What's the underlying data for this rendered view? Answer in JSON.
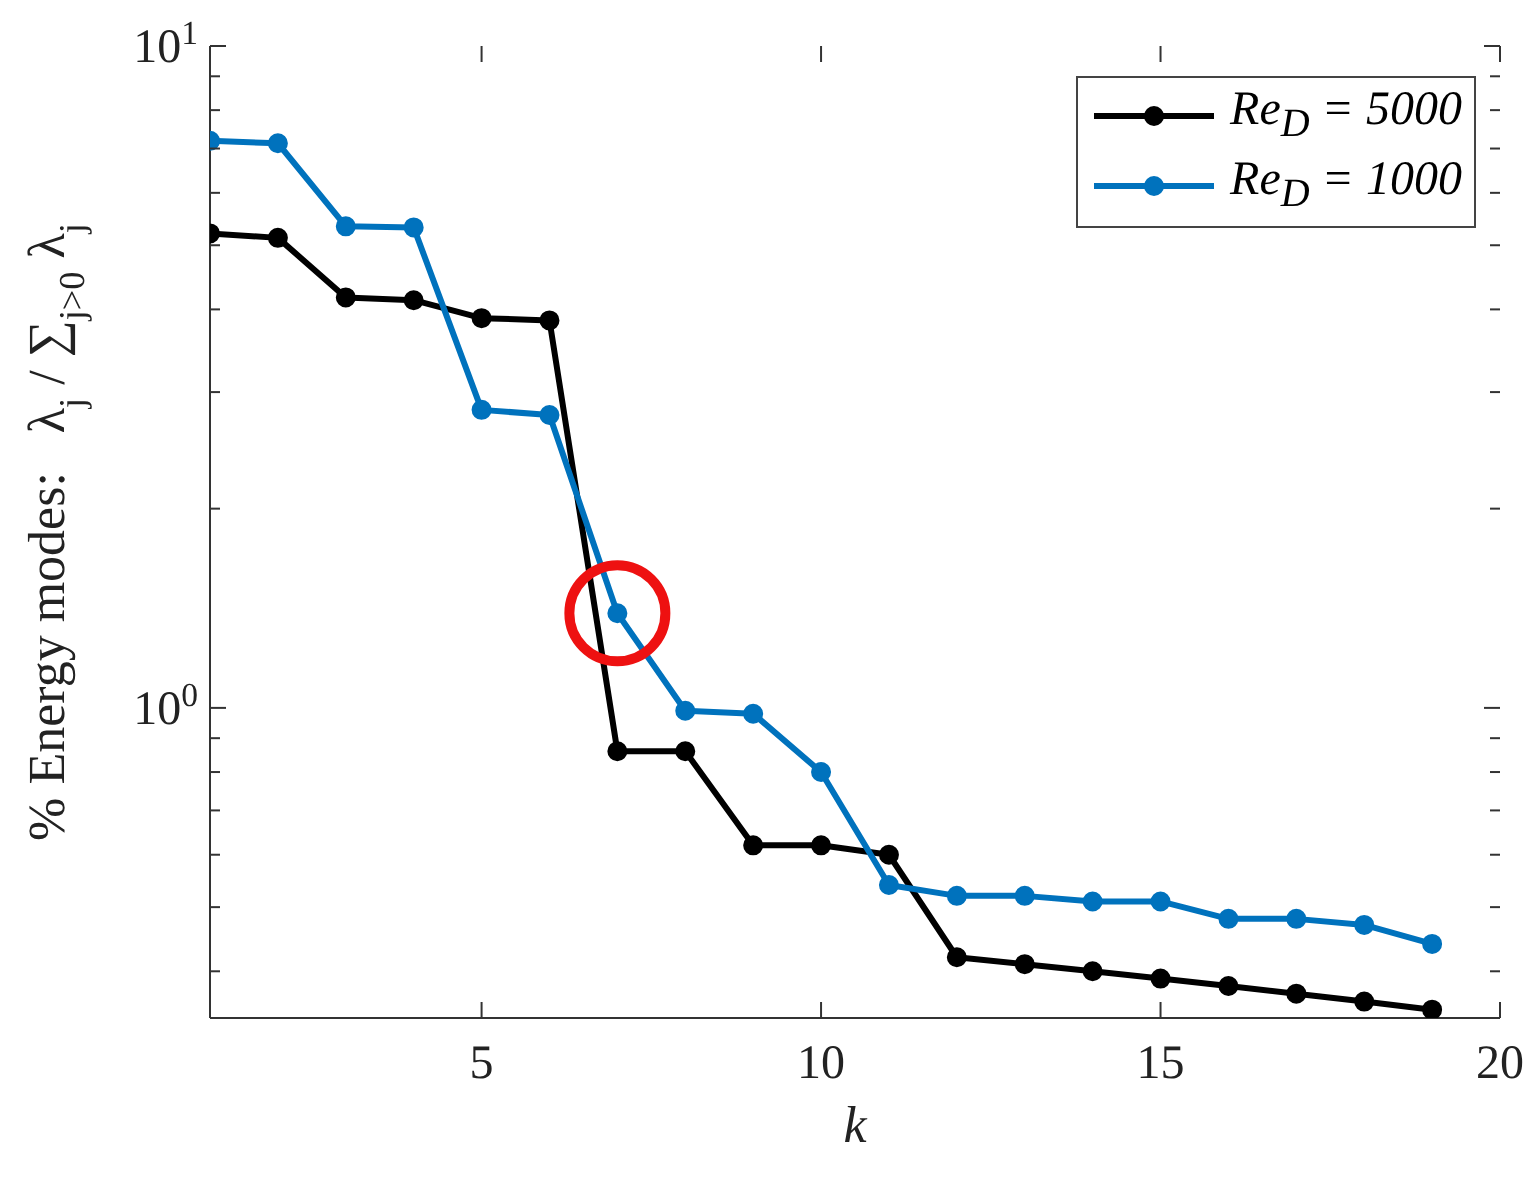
{
  "chart_data": {
    "type": "line",
    "xlabel": "k",
    "ylabel": "% Energy modes:   λ$_{j}$ / ∑$_{j>0}$ λ$_{j}$",
    "x": [
      1,
      2,
      3,
      4,
      5,
      6,
      7,
      8,
      9,
      10,
      11,
      12,
      13,
      14,
      15,
      16,
      17,
      18,
      19
    ],
    "series": [
      {
        "name": "Re$_{D}$ = 5000",
        "color": "#000000",
        "values": [
          5.21,
          5.13,
          4.17,
          4.13,
          3.88,
          3.85,
          0.86,
          0.86,
          0.62,
          0.62,
          0.6,
          0.42,
          0.41,
          0.4,
          0.39,
          0.38,
          0.37,
          0.36,
          0.35
        ]
      },
      {
        "name": "Re$_{D}$ = 1000",
        "color": "#0072bd",
        "values": [
          7.19,
          7.13,
          5.34,
          5.32,
          2.82,
          2.77,
          1.39,
          0.99,
          0.98,
          0.8,
          0.54,
          0.52,
          0.52,
          0.51,
          0.51,
          0.48,
          0.48,
          0.47,
          0.44
        ]
      }
    ],
    "xlim": [
      1,
      20
    ],
    "xticks": [
      5,
      10,
      15,
      20
    ],
    "ylim": [
      0.34,
      10
    ],
    "yticks": [
      {
        "value": 0.4,
        "label": null
      },
      {
        "value": 0.5,
        "label": null
      },
      {
        "value": 0.6,
        "label": null
      },
      {
        "value": 0.7,
        "label": null
      },
      {
        "value": 0.8,
        "label": null
      },
      {
        "value": 0.9,
        "label": null
      },
      {
        "value": 1,
        "label": "10$^{0}$"
      },
      {
        "value": 2,
        "label": null
      },
      {
        "value": 3,
        "label": null
      },
      {
        "value": 4,
        "label": null
      },
      {
        "value": 5,
        "label": null
      },
      {
        "value": 6,
        "label": null
      },
      {
        "value": 7,
        "label": null
      },
      {
        "value": 8,
        "label": null
      },
      {
        "value": 9,
        "label": null
      },
      {
        "value": 10,
        "label": "10$^{1}$"
      }
    ],
    "log": "y",
    "legend": "top right",
    "marker": "circle",
    "line_style": "solid"
  }
}
